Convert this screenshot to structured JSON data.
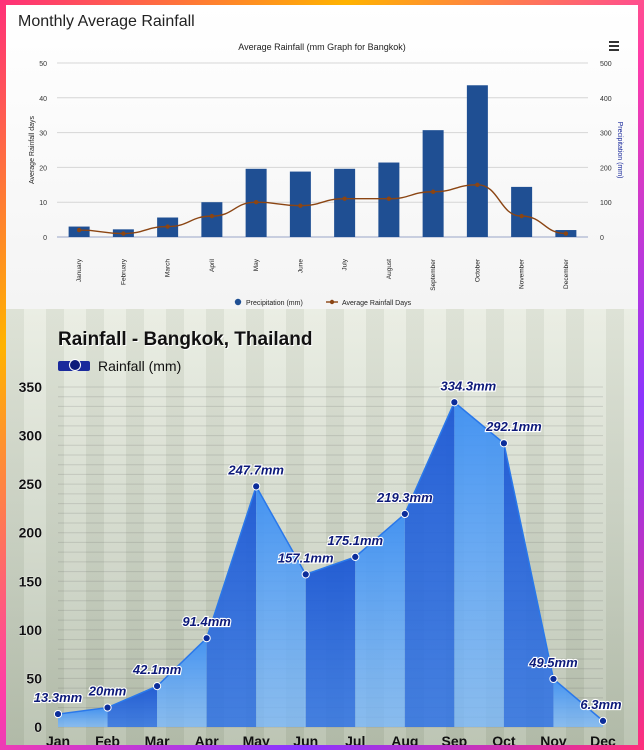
{
  "top": {
    "panel_title": "Monthly Average Rainfall",
    "chart_title": "Average Rainfall (mm Graph for Bangkok)",
    "menu_icon": "hamburger-menu-icon",
    "left_axis_label": "Average Rainfall days",
    "right_axis_label": "Precipitation (mm)",
    "left_ticks": [
      "0",
      "10",
      "20",
      "30",
      "40",
      "50"
    ],
    "right_ticks": [
      "0",
      "100",
      "200",
      "300",
      "400",
      "500"
    ],
    "legend_precip": "Precipitation (mm)",
    "legend_days": "Average Rainfall Days"
  },
  "bottom": {
    "title": "Rainfall - Bangkok, Thailand",
    "legend": "Rainfall (mm)",
    "y_ticks": [
      "0",
      "50",
      "100",
      "150",
      "200",
      "250",
      "300",
      "350"
    ]
  },
  "colors": {
    "bar": "#1f4f93",
    "days_line": "#8b4513",
    "area_light": "#4a9df0",
    "area_dark": "#0b3fb0",
    "label": "#0d1a7a"
  },
  "chart_data": [
    {
      "type": "bar",
      "title": "Average Rainfall (mm Graph for Bangkok)",
      "categories": [
        "January",
        "February",
        "March",
        "April",
        "May",
        "June",
        "July",
        "August",
        "September",
        "October",
        "November",
        "December"
      ],
      "series": [
        {
          "name": "Precipitation (mm)",
          "axis": "right",
          "values": [
            30,
            22,
            56,
            100,
            196,
            188,
            196,
            214,
            307,
            436,
            144,
            20
          ]
        },
        {
          "name": "Average Rainfall Days",
          "axis": "left",
          "type": "line",
          "values": [
            2,
            1,
            3,
            6,
            10,
            9,
            11,
            11,
            13,
            15,
            6,
            1
          ]
        }
      ],
      "ylabel": "Average Rainfall days",
      "y2label": "Precipitation (mm)",
      "ylim": [
        0,
        50
      ],
      "y2lim": [
        0,
        500
      ],
      "grid": true,
      "legend": "bottom-center"
    },
    {
      "type": "area",
      "title": "Rainfall - Bangkok, Thailand",
      "categories": [
        "Jan",
        "Feb",
        "Mar",
        "Apr",
        "May",
        "Jun",
        "Jul",
        "Aug",
        "Sep",
        "Oct",
        "Nov",
        "Dec"
      ],
      "series": [
        {
          "name": "Rainfall (mm)",
          "values": [
            13.3,
            20,
            42.1,
            91.4,
            247.7,
            157.1,
            175.1,
            219.3,
            334.3,
            292.1,
            49.5,
            6.3
          ],
          "labels": [
            "13.3mm",
            "20mm",
            "42.1mm",
            "91.4mm",
            "247.7mm",
            "157.1mm",
            "175.1mm",
            "219.3mm",
            "334.3mm",
            "292.1mm",
            "49.5mm",
            "6.3mm"
          ]
        }
      ],
      "ylim": [
        0,
        350
      ],
      "grid": true,
      "legend": "top-left"
    }
  ]
}
